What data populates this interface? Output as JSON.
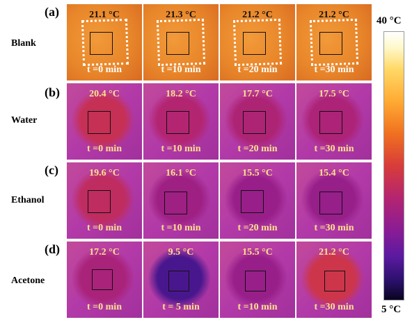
{
  "scale": {
    "max_label": "40 °C",
    "min_label": "5 °C",
    "max_value": 40,
    "min_value": 5
  },
  "rows": [
    {
      "letter": "(a)",
      "label": "Blank",
      "cells": [
        {
          "temp": "21.1 °C",
          "time": "t =0 min",
          "temp_value": 21.1
        },
        {
          "temp": "21.3 °C",
          "time": "t =10 min",
          "temp_value": 21.3
        },
        {
          "temp": "21.2 °C",
          "time": "t =20 min",
          "temp_value": 21.2
        },
        {
          "temp": "21.2 °C",
          "time": "t =30 min",
          "temp_value": 21.2
        }
      ]
    },
    {
      "letter": "(b)",
      "label": "Water",
      "cells": [
        {
          "temp": "20.4 °C",
          "time": "t =0 min",
          "temp_value": 20.4
        },
        {
          "temp": "18.2 °C",
          "time": "t =10 min",
          "temp_value": 18.2
        },
        {
          "temp": "17.7 °C",
          "time": "t =20 min",
          "temp_value": 17.7
        },
        {
          "temp": "17.5 °C",
          "time": "t =30 min",
          "temp_value": 17.5
        }
      ]
    },
    {
      "letter": "(c)",
      "label": "Ethanol",
      "cells": [
        {
          "temp": "19.6 °C",
          "time": "t =0 min",
          "temp_value": 19.6
        },
        {
          "temp": "16.1 °C",
          "time": "t =10 min",
          "temp_value": 16.1
        },
        {
          "temp": "15.5 °C",
          "time": "t =20 min",
          "temp_value": 15.5
        },
        {
          "temp": "15.4 °C",
          "time": "t =30 min",
          "temp_value": 15.4
        }
      ]
    },
    {
      "letter": "(d)",
      "label": "Acetone",
      "cells": [
        {
          "temp": "17.2 °C",
          "time": "t =0 min",
          "temp_value": 17.2
        },
        {
          "temp": "9.5 °C",
          "time": "t = 5 min",
          "temp_value": 9.5
        },
        {
          "temp": "15.5 °C",
          "time": "t =10 min",
          "temp_value": 15.5
        },
        {
          "temp": "21.2 °C",
          "time": "t =30 min",
          "temp_value": 21.2
        }
      ]
    }
  ],
  "colors": {
    "blank_bg": "#e8862a",
    "annotation_text": "#ffe38a",
    "dashed_outline": "#ffffff"
  }
}
